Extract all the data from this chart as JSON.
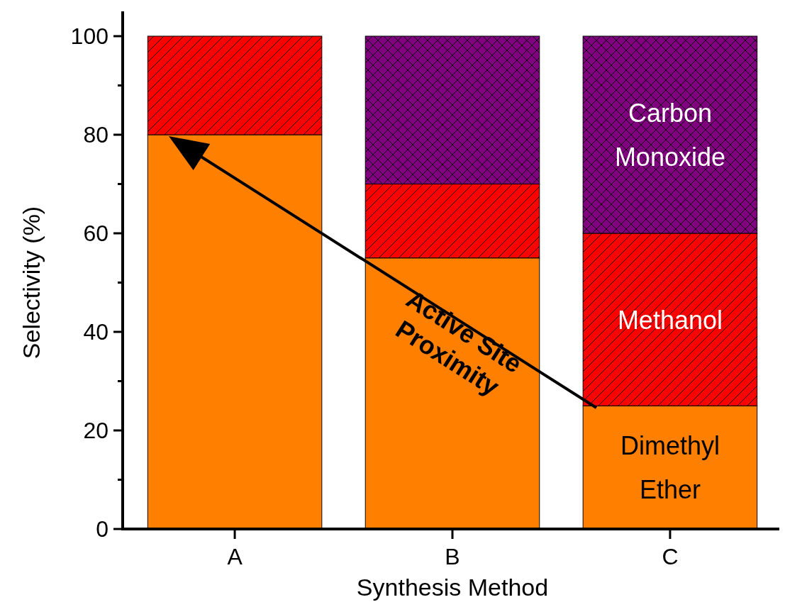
{
  "chart_data": {
    "type": "bar",
    "stacked": true,
    "xlabel": "Synthesis Method",
    "ylabel": "Selectivity (%)",
    "categories": [
      "A",
      "B",
      "C"
    ],
    "series": [
      {
        "name": "Dimethyl Ether",
        "color": "#ff8000",
        "values": [
          80,
          55,
          25
        ]
      },
      {
        "name": "Methanol",
        "color": "#ff0000",
        "values": [
          20,
          15,
          35
        ]
      },
      {
        "name": "Carbon Monoxide",
        "color": "#800080",
        "values": [
          0,
          30,
          40
        ]
      }
    ],
    "ylim": [
      0,
      100
    ],
    "yticks": [
      0,
      {
        "value": 10,
        "label": null
      },
      20,
      {
        "value": 30,
        "label": null
      },
      40,
      {
        "value": 50,
        "label": null
      },
      60,
      {
        "value": 70,
        "label": null
      },
      80,
      {
        "value": 90,
        "label": null
      },
      100
    ],
    "annotations": [
      "Active Site Proximity"
    ],
    "grid": false
  }
}
